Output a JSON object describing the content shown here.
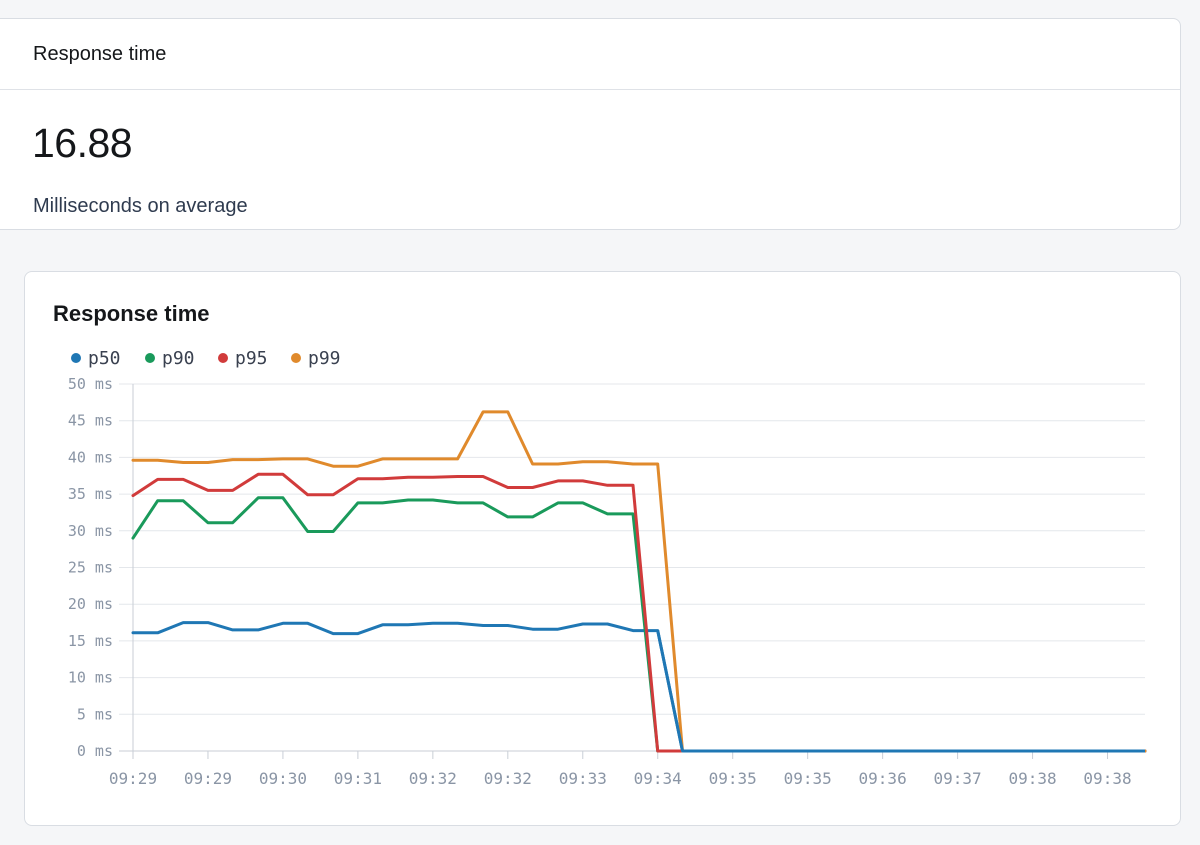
{
  "stat_card": {
    "title": "Response time",
    "value": "16.88",
    "caption": "Milliseconds on average"
  },
  "chart_card": {
    "title": "Response time"
  },
  "chart_data": {
    "type": "line",
    "title": "Response time",
    "xlabel": "",
    "ylabel": "",
    "ylim": [
      0,
      50
    ],
    "y_ticks": [
      "50 ms",
      "45 ms",
      "40 ms",
      "35 ms",
      "30 ms",
      "25 ms",
      "20 ms",
      "15 ms",
      "10 ms",
      "5 ms",
      "0 ms"
    ],
    "x_ticks": [
      "09:29",
      "09:29",
      "09:30",
      "09:31",
      "09:32",
      "09:32",
      "09:33",
      "09:34",
      "09:35",
      "09:35",
      "09:36",
      "09:37",
      "09:38",
      "09:38"
    ],
    "legend_position": "top-left",
    "grid": true,
    "x_range": [
      0,
      13.5
    ],
    "series": [
      {
        "name": "p50",
        "color": "#1f77b4",
        "x": [
          0,
          0.33,
          0.67,
          1,
          1.33,
          1.67,
          2,
          2.33,
          2.67,
          3,
          3.33,
          3.67,
          4,
          4.33,
          4.67,
          5,
          5.33,
          5.67,
          6,
          6.33,
          6.67,
          7,
          7.33,
          13.5
        ],
        "y": [
          16.1,
          16.1,
          17.5,
          17.5,
          16.5,
          16.5,
          17.4,
          17.4,
          16.0,
          16.0,
          17.2,
          17.2,
          17.4,
          17.4,
          17.1,
          17.1,
          16.6,
          16.6,
          17.3,
          17.3,
          16.4,
          16.4,
          0,
          0
        ]
      },
      {
        "name": "p90",
        "color": "#1a9a5b",
        "x": [
          0,
          0.33,
          0.67,
          1,
          1.33,
          1.67,
          2,
          2.33,
          2.67,
          3,
          3.33,
          3.67,
          4,
          4.33,
          4.67,
          5,
          5.33,
          5.67,
          6,
          6.33,
          6.67,
          7,
          13.5
        ],
        "y": [
          29.0,
          34.1,
          34.1,
          31.1,
          31.1,
          34.5,
          34.5,
          29.9,
          29.9,
          33.8,
          33.8,
          34.2,
          34.2,
          33.8,
          33.8,
          31.9,
          31.9,
          33.8,
          33.8,
          32.3,
          32.3,
          0,
          0
        ]
      },
      {
        "name": "p95",
        "color": "#d13b3b",
        "x": [
          0,
          0.33,
          0.67,
          1,
          1.33,
          1.67,
          2,
          2.33,
          2.67,
          3,
          3.33,
          3.67,
          4,
          4.33,
          4.67,
          5,
          5.33,
          5.67,
          6,
          6.33,
          6.67,
          7,
          13.5
        ],
        "y": [
          34.8,
          37.0,
          37.0,
          35.5,
          35.5,
          37.7,
          37.7,
          34.9,
          34.9,
          37.1,
          37.1,
          37.3,
          37.3,
          37.4,
          37.4,
          35.9,
          35.9,
          36.8,
          36.8,
          36.2,
          36.2,
          0,
          0
        ]
      },
      {
        "name": "p99",
        "color": "#e08a2c",
        "x": [
          0,
          0.33,
          0.67,
          1,
          1.33,
          1.67,
          2,
          2.33,
          2.67,
          3,
          3.33,
          3.67,
          4,
          4.33,
          4.67,
          5,
          5.33,
          5.67,
          6,
          6.33,
          6.67,
          7,
          7.33,
          13.5
        ],
        "y": [
          39.6,
          39.6,
          39.3,
          39.3,
          39.7,
          39.7,
          39.8,
          39.8,
          38.8,
          38.8,
          39.8,
          39.8,
          39.8,
          39.8,
          46.2,
          46.2,
          39.1,
          39.1,
          39.4,
          39.4,
          39.1,
          39.1,
          0,
          0
        ]
      }
    ]
  }
}
